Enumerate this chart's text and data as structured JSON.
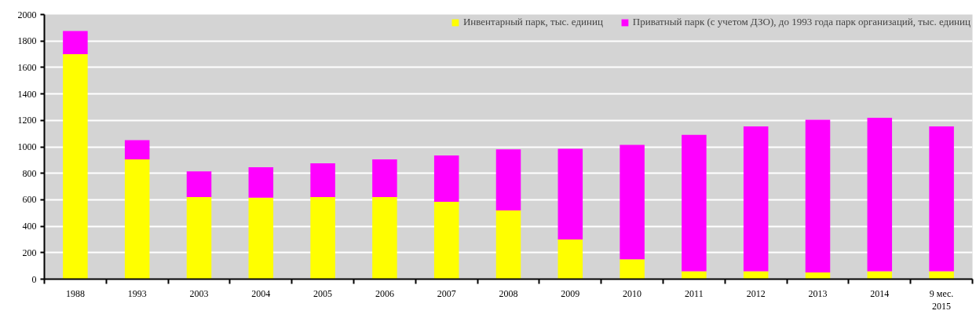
{
  "chart_data": {
    "type": "bar",
    "stacked": true,
    "categories": [
      "1988",
      "1993",
      "2003",
      "2004",
      "2005",
      "2006",
      "2007",
      "2008",
      "2009",
      "2010",
      "2011",
      "2012",
      "2013",
      "2014",
      "9 мес.\n2015"
    ],
    "series": [
      {
        "name": "Инвентарный парк, тыс. единиц",
        "color": "#ffff00",
        "values": [
          1700,
          905,
          620,
          615,
          620,
          620,
          585,
          520,
          300,
          150,
          60,
          60,
          50,
          60,
          60
        ]
      },
      {
        "name": "Приватный парк (с учетом ДЗО), до 1993 года парк организаций, тыс. единиц",
        "color": "#ff00ff",
        "values": [
          175,
          145,
          195,
          230,
          255,
          285,
          350,
          460,
          685,
          865,
          1030,
          1095,
          1155,
          1160,
          1095
        ]
      }
    ],
    "ylim": [
      0,
      2000
    ],
    "yticks": [
      0,
      200,
      400,
      600,
      800,
      1000,
      1200,
      1400,
      1600,
      1800,
      2000
    ],
    "grid": "y",
    "legend": "top right"
  }
}
